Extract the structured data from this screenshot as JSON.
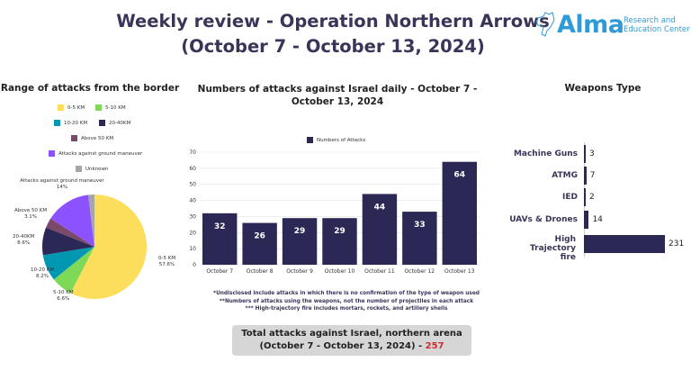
{
  "header": {
    "title_line1": "Weekly review - Operation Northern Arrows",
    "title_line2": "(October 7 - October 13, 2024)",
    "logo_name": "Alma",
    "logo_sub1": "Research and",
    "logo_sub2": "Education Center"
  },
  "chart_data": [
    {
      "type": "pie",
      "title": "Range of attacks from the border",
      "labels": [
        "0-5 KM",
        "5-10 KM",
        "10-20 KM",
        "20-40KM",
        "Above 50 KM",
        "Attacks against ground maneuver",
        "Unknown"
      ],
      "values": [
        57.6,
        6.6,
        8.2,
        8.6,
        3.1,
        14,
        1.9
      ],
      "value_labels": [
        "57.6%",
        "6.6%",
        "8.2%",
        "8.6%",
        "3.1%",
        "14%",
        ""
      ],
      "colors": [
        "#fddd5c",
        "#7ed957",
        "#0097b2",
        "#2b2855",
        "#7b4a6b",
        "#8c52ff",
        "#a6a6a6"
      ],
      "legend": "top"
    },
    {
      "type": "bar",
      "title": "Numbers of attacks against Israel daily - October 7 - October 13, 2024",
      "categories": [
        "October 7",
        "October 8",
        "October 9",
        "October 10",
        "October 11",
        "October 12",
        "October 13"
      ],
      "values": [
        32,
        26,
        29,
        29,
        44,
        33,
        64
      ],
      "legend_label": "Numbers of Attacks",
      "ylim": [
        0,
        70
      ],
      "yticks": [
        0,
        10,
        20,
        30,
        40,
        50,
        60,
        70
      ],
      "color": "#2b2855",
      "grid": true
    },
    {
      "type": "bar",
      "orientation": "horizontal",
      "title": "Weapons Type",
      "categories": [
        "Machine Guns",
        "ATMG",
        "IED",
        "UAVs & Drones",
        "High Trajectory fire"
      ],
      "values": [
        3,
        7,
        2,
        14,
        231
      ],
      "color": "#2b2855"
    }
  ],
  "notes": [
    "*Undisclosed include attacks in which  there is no confirmation of the type of weapon used",
    "**Numbers of attacks using the weapons, not the number of projectiles in each attack",
    "*** High-trajectory fire includes mortars, rockets, and artillery shells"
  ],
  "total": {
    "text": "Total attacks against Israel, northern arena (October 7 - October 13, 2024) - ",
    "value": "257"
  }
}
